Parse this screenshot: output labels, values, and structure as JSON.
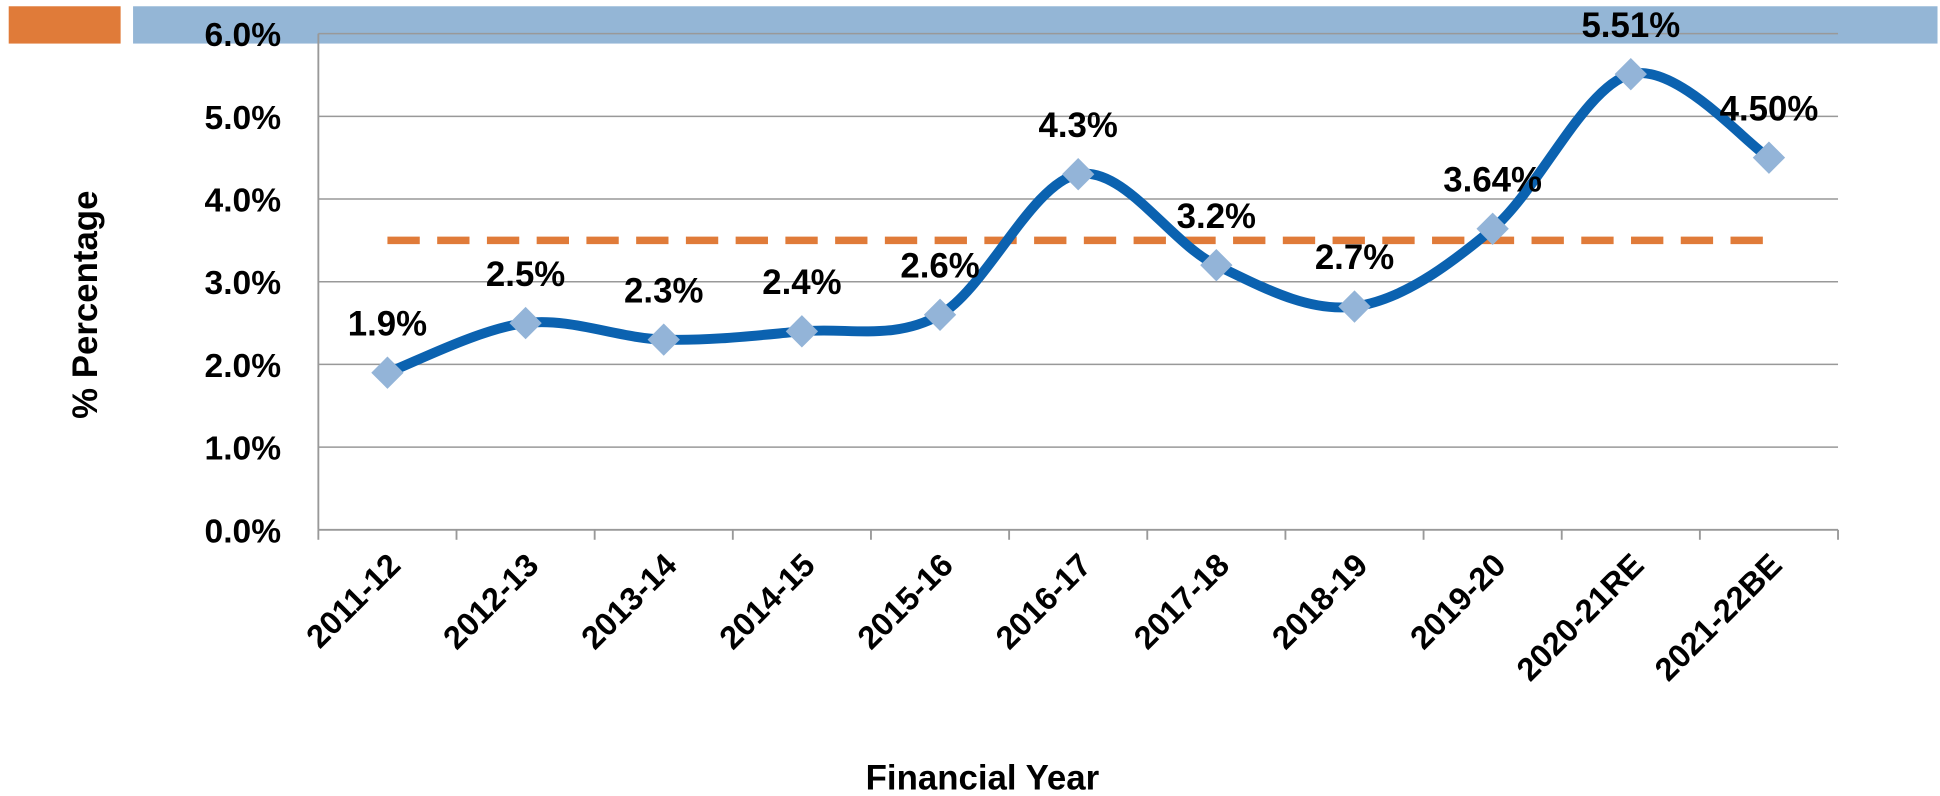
{
  "chart_data": {
    "type": "line",
    "categories": [
      "2011-12",
      "2012-13",
      "2013-14",
      "2014-15",
      "2015-16",
      "2016-17",
      "2017-18",
      "2018-19",
      "2019-20",
      "2020-21RE",
      "2021-22BE"
    ],
    "series": [
      {
        "color": "#0b62b0",
        "marker_color": "#93b4d8",
        "smooth": true,
        "values": [
          1.9,
          2.5,
          2.3,
          2.4,
          2.6,
          4.3,
          3.2,
          2.7,
          3.64,
          5.51,
          4.5
        ],
        "value_labels": [
          "1.9%",
          "2.5%",
          "2.3%",
          "2.4%",
          "2.6%",
          "4.3%",
          "3.2%",
          "2.7%",
          "3.64%",
          "5.51%",
          "4.50%"
        ]
      },
      {
        "color": "#e07b39",
        "dashed": true,
        "values": [
          3.5,
          3.5,
          3.5,
          3.5,
          3.5,
          3.5,
          3.5,
          3.5,
          3.5,
          3.5,
          3.5
        ]
      }
    ],
    "ylim": [
      0,
      6
    ],
    "yticks": [
      {
        "value": 0,
        "label": "0.0%"
      },
      {
        "value": 1,
        "label": "1.0%"
      },
      {
        "value": 2,
        "label": "2.0%"
      },
      {
        "value": 3,
        "label": "3.0%"
      },
      {
        "value": 4,
        "label": "4.0%"
      },
      {
        "value": 5,
        "label": "5.0%"
      },
      {
        "value": 6,
        "label": "6.0%"
      }
    ],
    "grid": true,
    "x_label": "Financial Year",
    "y_label": "% Percentage"
  }
}
